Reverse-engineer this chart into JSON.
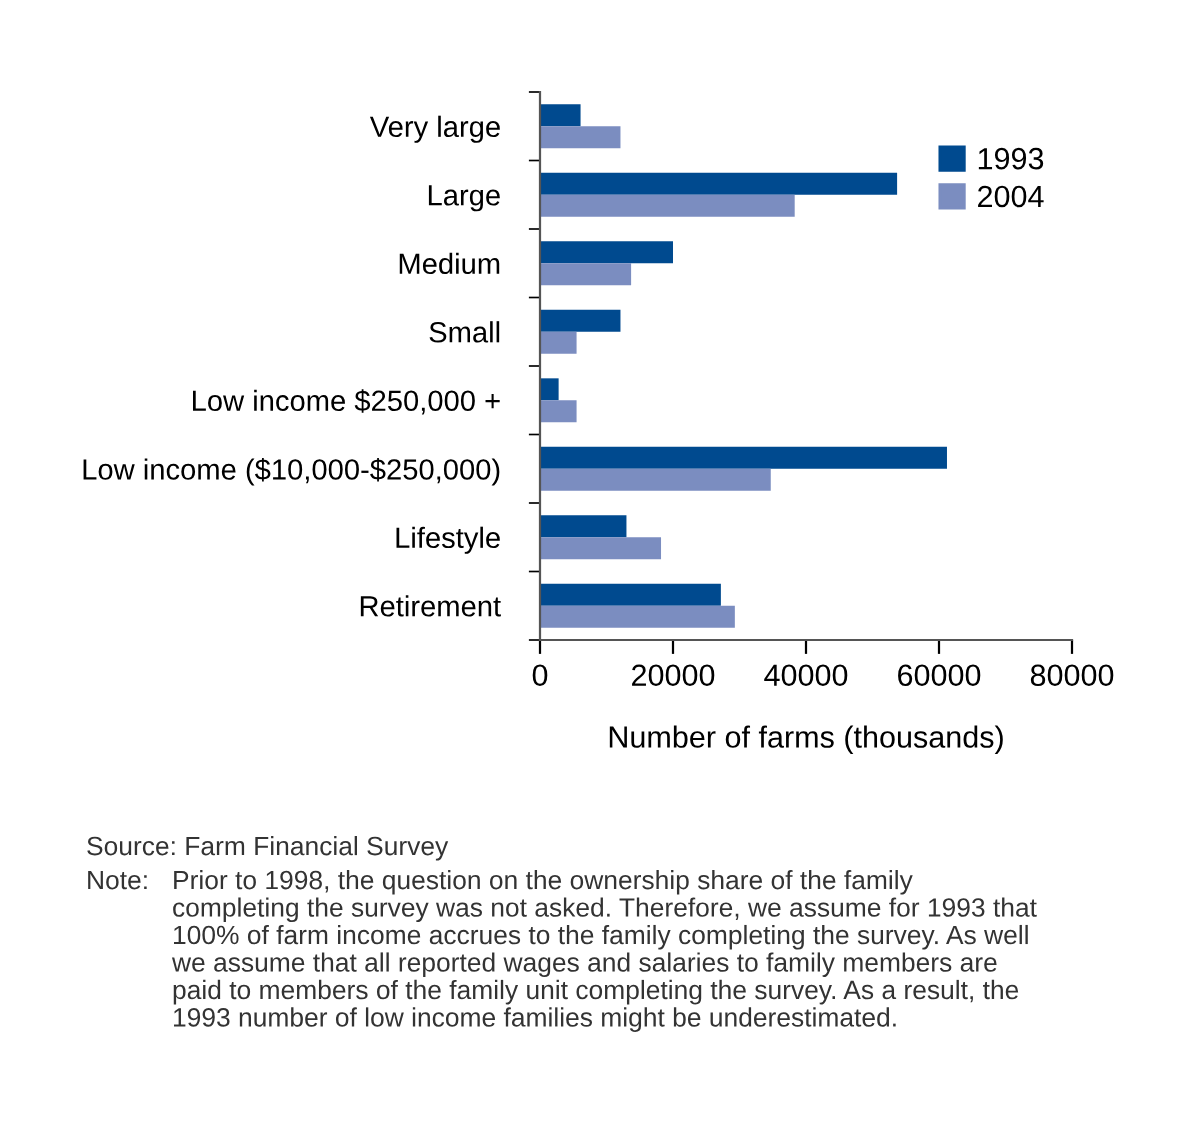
{
  "chart_data": {
    "type": "bar",
    "orientation": "horizontal",
    "categories": [
      "Very large",
      "Large",
      "Medium",
      "Small",
      "Low income $250,000 +",
      "Low income ($10,000-$250,000)",
      "Lifestyle",
      "Retirement"
    ],
    "series": [
      {
        "name": "1993",
        "color": "#004a8f",
        "values": [
          6100,
          53700,
          20000,
          12100,
          2800,
          61200,
          13000,
          27200
        ]
      },
      {
        "name": "2004",
        "color": "#7b8dc0",
        "values": [
          12100,
          38300,
          13700,
          5500,
          5500,
          34700,
          18200,
          29300
        ]
      }
    ],
    "xlabel": "Number of farms (thousands)",
    "xlim": [
      0,
      80000
    ],
    "xticks": [
      0,
      20000,
      40000,
      60000,
      80000
    ],
    "grid": false,
    "legend": "top right",
    "annotations": [
      "Source: Farm Financial Survey",
      "Note: Prior to 1998, the question on the ownership share of the family\ncompleting the survey was not asked. Therefore, we assume for 1993 that\n100% of farm income accrues to the family completing the survey. As well\nwe assume that all reported wages and salaries to family members are\npaid to members of the family unit completing the survey. As a result, the\n1993 number of low income families might be underestimated."
    ]
  }
}
